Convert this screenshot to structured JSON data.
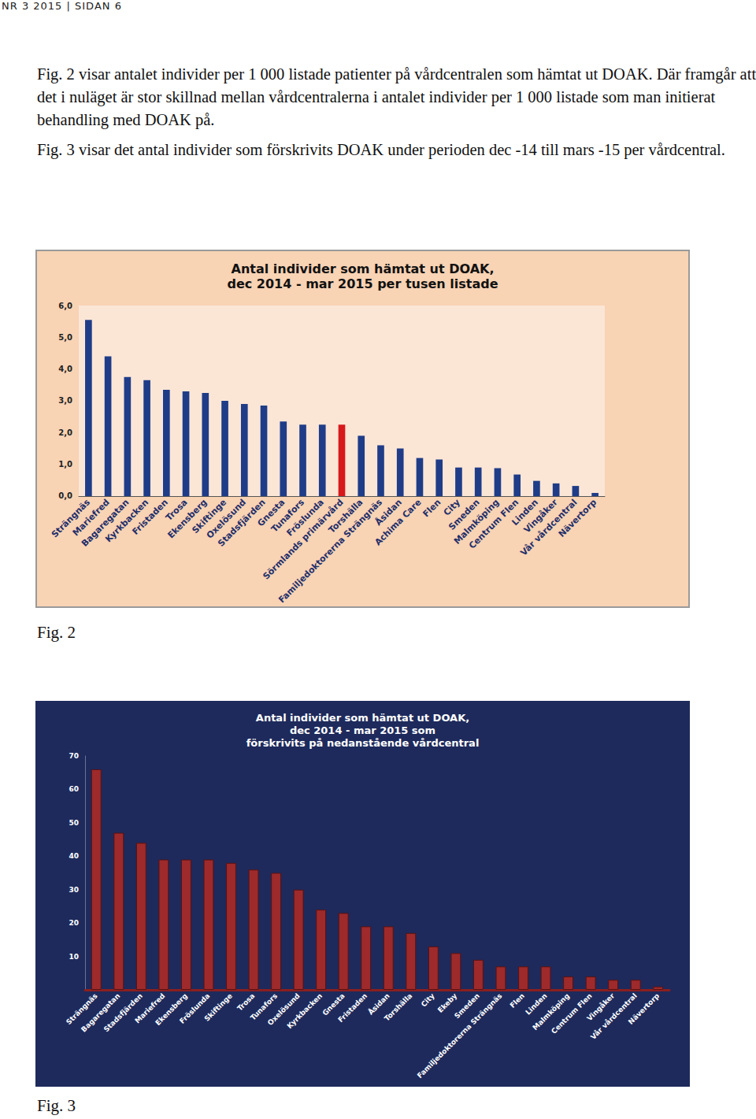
{
  "header": "NR 3 2015 | SIDAN 6",
  "paragraphs": [
    "Fig. 2 visar antalet individer per 1 000 listade patienter på vårdcentralen som hämtat ut DOAK. Där framgår att det i nuläget är stor skillnad mellan vårdcentralerna i antalet individer per 1 000 listade som man initierat behandling med DOAK på.",
    "Fig. 3 visar det antal individer som förskrivits DOAK under perioden dec -14 till mars -15 per vårdcentral."
  ],
  "captions": [
    "Fig. 2",
    "Fig. 3"
  ],
  "chart_data": [
    {
      "type": "bar",
      "title": "Antal individer som hämtat ut DOAK,\ndec 2014 - mar 2015 per tusen listade",
      "categories": [
        "Strängnäs",
        "Mariefred",
        "Bagaregatan",
        "Kyrkbacken",
        "Fristaden",
        "Trosa",
        "Ekensberg",
        "Skiftinge",
        "Oxelösund",
        "Stadsfjärden",
        "Gnesta",
        "Tunafors",
        "Fröslunda",
        "Sörmlands primärvård",
        "Torshälla",
        "Familjedoktorerna Strängnäs",
        "Åsidan",
        "Achima Care",
        "Flen",
        "City",
        "Smeden",
        "Malmköping",
        "Centrum Flen",
        "Linden",
        "Vingåker",
        "Vår vårdcentral",
        "Nävertorp"
      ],
      "values": [
        5.55,
        4.4,
        3.75,
        3.65,
        3.35,
        3.3,
        3.25,
        3.0,
        2.9,
        2.85,
        2.35,
        2.25,
        2.25,
        2.25,
        1.9,
        1.6,
        1.5,
        1.2,
        1.15,
        0.9,
        0.9,
        0.88,
        0.68,
        0.48,
        0.4,
        0.32,
        0.1
      ],
      "colors": [
        "#1f3c88",
        "#1f3c88",
        "#1f3c88",
        "#1f3c88",
        "#1f3c88",
        "#1f3c88",
        "#1f3c88",
        "#1f3c88",
        "#1f3c88",
        "#1f3c88",
        "#1f3c88",
        "#1f3c88",
        "#1f3c88",
        "#d7191c",
        "#1f3c88",
        "#1f3c88",
        "#1f3c88",
        "#1f3c88",
        "#1f3c88",
        "#1f3c88",
        "#1f3c88",
        "#1f3c88",
        "#1f3c88",
        "#1f3c88",
        "#1f3c88",
        "#1f3c88",
        "#1f3c88"
      ],
      "ylim": [
        0,
        6
      ],
      "yticks": [
        {
          "value": 0,
          "label": "0,0"
        },
        {
          "value": 1,
          "label": "1,0"
        },
        {
          "value": 2,
          "label": "2,0"
        },
        {
          "value": 3,
          "label": "3,0"
        },
        {
          "value": 4,
          "label": "4,0"
        },
        {
          "value": 5,
          "label": "5,0"
        },
        {
          "value": 6,
          "label": "6,0"
        }
      ],
      "grid": false
    },
    {
      "type": "bar",
      "title": "Antal individer som hämtat ut DOAK,\ndec 2014 - mar 2015 som\nförskrivits på nedanstående vårdcentral",
      "categories": [
        "Strängnäs",
        "Bagaregatan",
        "Stadsfjärden",
        "Mariefred",
        "Ekensberg",
        "Fröslunda",
        "Skiftinge",
        "Trosa",
        "Tunafors",
        "Oxelösund",
        "Kyrkbacken",
        "Gnesta",
        "Fristaden",
        "Åsidan",
        "Torshälla",
        "City",
        "Ekeby",
        "Smeden",
        "Familjedoktorerna Strängnäs",
        "Flen",
        "Linden",
        "Malmköping",
        "Centrum Flen",
        "Vingåker",
        "Vår vårdcentral",
        "Nävertorp"
      ],
      "values": [
        66,
        47,
        44,
        39,
        39,
        39,
        38,
        36,
        35,
        30,
        24,
        23,
        19,
        19,
        17,
        13,
        11,
        9,
        7,
        7,
        7,
        4,
        4,
        3,
        3,
        1
      ],
      "color": "#9e2a2b",
      "ylim": [
        0,
        70
      ],
      "yticks": [
        10,
        20,
        30,
        40,
        50,
        60,
        70
      ],
      "grid": false
    }
  ]
}
